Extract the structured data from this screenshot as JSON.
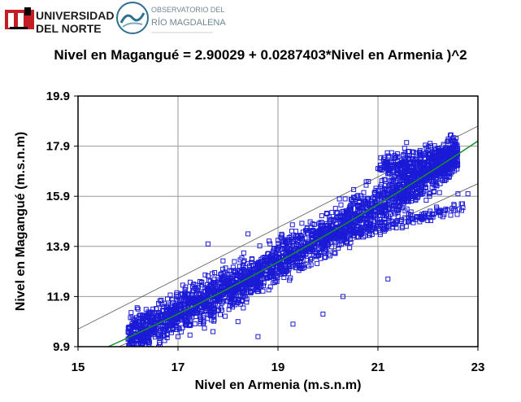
{
  "header": {
    "university_line1": "UNIVERSIDAD",
    "university_line2": "DEL NORTE",
    "observatory_line1": "OBSERVATORIO DEL",
    "observatory_line2": "RÍO MAGDALENA"
  },
  "chart_data": {
    "type": "scatter",
    "title": "Nivel en Magangué = 2.90029 + 0.0287403*Nivel en Armenia )^2",
    "xlabel": "Nivel en Armenia  (m.s.n.m)",
    "ylabel": "Nivel en  Magangué  (m.s.n.m)",
    "xlim": [
      15,
      23
    ],
    "ylim": [
      9.9,
      19.9
    ],
    "xticks": [
      "15",
      "17",
      "19",
      "21",
      "23"
    ],
    "yticks": [
      "9.9",
      "11.9",
      "13.9",
      "15.9",
      "17.9",
      "19.9"
    ],
    "grid": true,
    "marker": "open-square",
    "colors": {
      "points": "#1a1ad6",
      "fit": "#1a8f2a",
      "bands": "#555555"
    },
    "fit": {
      "intercept": 2.90029,
      "slope": 0.0287403,
      "form": "x^2",
      "x_range": [
        15.5,
        23
      ]
    },
    "prediction_bands": [
      {
        "name": "upper",
        "points": [
          [
            15,
            10.6
          ],
          [
            23,
            18.7
          ]
        ]
      },
      {
        "name": "lower",
        "points": [
          [
            15.6,
            9.7
          ],
          [
            23,
            16.4
          ]
        ]
      }
    ],
    "point_clouds": [
      {
        "region": "main-band",
        "x_range": [
          16.0,
          22.6
        ],
        "center_intercept": 2.90029,
        "center_slope": 0.0287403,
        "spread": 0.75,
        "count": 2600
      },
      {
        "region": "upper-lobe",
        "x_range": [
          21.0,
          22.6
        ],
        "y_center": 17.3,
        "spread": 0.55,
        "count": 320
      },
      {
        "region": "lower-arc",
        "x_range": [
          20.2,
          22.7
        ],
        "y_center": 14.9,
        "spread": 0.35,
        "count": 160
      }
    ],
    "outliers": [
      [
        16.2,
        11.4
      ],
      [
        16.5,
        11.4
      ],
      [
        17.6,
        14.0
      ],
      [
        18.4,
        14.4
      ],
      [
        19.9,
        11.2
      ],
      [
        20.3,
        11.9
      ],
      [
        21.2,
        12.6
      ],
      [
        22.6,
        16.0
      ],
      [
        22.8,
        16.0
      ],
      [
        16.9,
        10.6
      ],
      [
        17.0,
        10.3
      ],
      [
        17.7,
        10.5
      ],
      [
        18.2,
        10.9
      ],
      [
        18.6,
        10.3
      ],
      [
        19.3,
        10.8
      ]
    ]
  }
}
